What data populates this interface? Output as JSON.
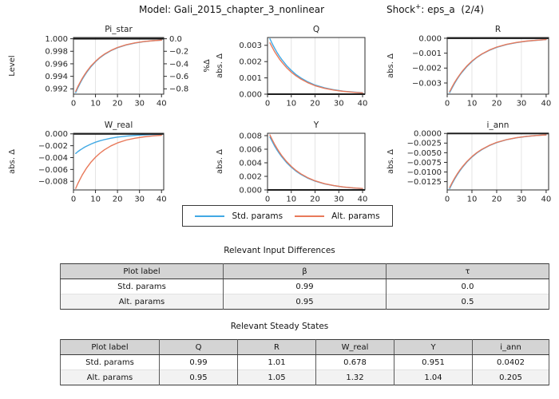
{
  "title": {
    "model_label": "Model: Gali_2015_chapter_3_nonlinear",
    "shock_base": "Shock",
    "shock_sup": "+",
    "shock_rest": ": eps_a  (2/4)"
  },
  "legend": {
    "items": [
      {
        "label": "Std. params",
        "color": "#41A9E4"
      },
      {
        "label": "Alt. params",
        "color": "#E8795A"
      }
    ]
  },
  "chart_data": {
    "type": "line",
    "x": [
      1,
      2,
      3,
      4,
      5,
      6,
      8,
      10,
      12,
      14,
      17,
      20,
      24,
      28,
      32,
      36,
      40
    ],
    "xlim": [
      0,
      41
    ],
    "xticks": [
      0,
      10,
      20,
      30,
      40
    ],
    "grid_x": [
      10,
      20,
      30
    ],
    "series_names": [
      "Std. params",
      "Alt. params"
    ],
    "colors": [
      "#41A9E4",
      "#E8795A"
    ],
    "legend_position": "below",
    "subplots": [
      {
        "title": "Pi_star",
        "ylabel": "Level",
        "ylim": [
          0.99115,
          1.0002
        ],
        "refline": 1.0,
        "ytick_vals": [
          1.0,
          0.998,
          0.996,
          0.994,
          0.992
        ],
        "ytick_labels": [
          "1.000",
          "0.998",
          "0.996",
          "0.994",
          "0.992"
        ],
        "right_axis": {
          "label": "%Δ",
          "tick_vals": [
            0.0,
            -0.2,
            -0.4,
            -0.6,
            -0.8
          ],
          "tick_labels": [
            "0.0",
            "−0.2",
            "−0.4",
            "−0.6",
            "−0.8"
          ]
        },
        "series": {
          "std": [
            0.9914,
            0.99217,
            0.99288,
            0.99352,
            0.9941,
            0.99463,
            0.99555,
            0.99632,
            0.99696,
            0.99747,
            0.9981,
            0.99857,
            0.99902,
            0.99932,
            0.99954,
            0.99968,
            0.99978
          ],
          "alt": [
            0.9916,
            0.99236,
            0.99304,
            0.99367,
            0.99424,
            0.99476,
            0.99566,
            0.9964,
            0.99703,
            0.99753,
            0.99814,
            0.99861,
            0.99904,
            0.99934,
            0.99955,
            0.99969,
            0.99978
          ]
        }
      },
      {
        "title": "Q",
        "ylabel": "abs. Δ",
        "ylim": [
          0.0,
          0.00348
        ],
        "refline": 0.0,
        "ytick_vals": [
          0.003,
          0.002,
          0.001,
          0.0
        ],
        "ytick_labels": [
          "0.003",
          "0.002",
          "0.001",
          "0.000"
        ],
        "series": {
          "std": [
            0.0034,
            0.00309,
            0.00282,
            0.00256,
            0.00233,
            0.00212,
            0.00176,
            0.00146,
            0.0012,
            0.001,
            0.00075,
            0.00056,
            0.00039,
            0.00027,
            0.00018,
            0.00013,
            9e-05
          ],
          "alt": [
            0.00315,
            0.00287,
            0.00261,
            0.00238,
            0.00216,
            0.00197,
            0.00163,
            0.00135,
            0.00112,
            0.00093,
            0.0007,
            0.00052,
            0.00036,
            0.00025,
            0.00017,
            0.00012,
            8e-05
          ]
        }
      },
      {
        "title": "R",
        "ylabel": "abs. Δ",
        "ylim": [
          -0.00375,
          5e-05
        ],
        "refline": 0.0,
        "ytick_vals": [
          0.0,
          -0.001,
          -0.002,
          -0.003
        ],
        "ytick_labels": [
          "0.000",
          "−0.001",
          "−0.002",
          "−0.003"
        ],
        "series": {
          "std": [
            -0.00365,
            -0.00332,
            -0.00302,
            -0.00275,
            -0.0025,
            -0.00228,
            -0.00189,
            -0.00156,
            -0.00129,
            -0.00107,
            -0.00081,
            -0.00061,
            -0.00042,
            -0.00029,
            -0.0002,
            -0.00014,
            -9e-05
          ],
          "alt": [
            -0.00358,
            -0.00326,
            -0.00296,
            -0.0027,
            -0.00246,
            -0.00223,
            -0.00185,
            -0.00153,
            -0.00127,
            -0.00105,
            -0.00079,
            -0.00059,
            -0.00041,
            -0.00028,
            -0.00019,
            -0.00013,
            -9e-05
          ]
        }
      },
      {
        "title": "W_real",
        "ylabel": "abs. Δ",
        "ylim": [
          -0.00945,
          0.0001
        ],
        "refline": 0.0,
        "ytick_vals": [
          0.0,
          -0.002,
          -0.004,
          -0.006,
          -0.008
        ],
        "ytick_labels": [
          "0.000",
          "−0.002",
          "−0.004",
          "−0.006",
          "−0.008"
        ],
        "series": {
          "std": [
            -0.0033,
            -0.003,
            -0.00273,
            -0.00249,
            -0.00226,
            -0.00206,
            -0.00171,
            -0.00141,
            -0.00117,
            -0.00097,
            -0.00073,
            -0.00055,
            -0.00038,
            -0.00026,
            -0.00018,
            -0.00012,
            -9e-05
          ],
          "alt": [
            -0.0092,
            -0.00837,
            -0.00762,
            -0.00694,
            -0.00631,
            -0.00574,
            -0.00476,
            -0.00394,
            -0.00326,
            -0.0027,
            -0.00203,
            -0.00153,
            -0.00105,
            -0.00073,
            -0.0005,
            -0.00034,
            -0.00024
          ]
        }
      },
      {
        "title": "Y",
        "ylabel": "abs. Δ",
        "ylim": [
          0.0,
          0.00835
        ],
        "refline": 0.0,
        "ytick_vals": [
          0.008,
          0.006,
          0.004,
          0.002,
          0.0
        ],
        "ytick_labels": [
          "0.008",
          "0.006",
          "0.004",
          "0.002",
          "0.000"
        ],
        "series": {
          "std": [
            0.0078,
            0.0071,
            0.00646,
            0.00588,
            0.00535,
            0.00487,
            0.00403,
            0.00334,
            0.00276,
            0.00229,
            0.00172,
            0.00129,
            0.00089,
            0.00062,
            0.00042,
            0.00029,
            0.0002
          ],
          "alt": [
            0.0081,
            0.00737,
            0.00671,
            0.00611,
            0.00556,
            0.00505,
            0.00419,
            0.00347,
            0.00287,
            0.00238,
            0.00179,
            0.00134,
            0.00092,
            0.00064,
            0.00044,
            0.0003,
            0.00021
          ]
        }
      },
      {
        "title": "i_ann",
        "ylabel": "abs. Δ",
        "ylim": [
          -0.01465,
          5e-05
        ],
        "refline": 0.0,
        "ytick_vals": [
          0.0,
          -0.0025,
          -0.005,
          -0.0075,
          -0.01,
          -0.0125
        ],
        "ytick_labels": [
          "0.0000",
          "−0.0025",
          "−0.0050",
          "−0.0075",
          "−0.0100",
          "−0.0125"
        ],
        "series": {
          "std": [
            -0.0143,
            -0.01301,
            -0.01184,
            -0.01078,
            -0.00981,
            -0.00892,
            -0.00739,
            -0.00612,
            -0.00506,
            -0.0042,
            -0.00316,
            -0.00237,
            -0.00163,
            -0.00113,
            -0.00077,
            -0.00053,
            -0.00037
          ],
          "alt": [
            -0.014,
            -0.01274,
            -0.01159,
            -0.01055,
            -0.0096,
            -0.00874,
            -0.00724,
            -0.00599,
            -0.00496,
            -0.00412,
            -0.00309,
            -0.00232,
            -0.0016,
            -0.00111,
            -0.00076,
            -0.00052,
            -0.00036
          ]
        }
      }
    ]
  },
  "tables": [
    {
      "title": "Relevant Input Differences",
      "columns": [
        "Plot label",
        "β",
        "τ"
      ],
      "rows": [
        [
          "Std. params",
          "0.99",
          "0.0"
        ],
        [
          "Alt. params",
          "0.95",
          "0.5"
        ]
      ]
    },
    {
      "title": "Relevant Steady States",
      "columns": [
        "Plot label",
        "Q",
        "R",
        "W_real",
        "Y",
        "i_ann"
      ],
      "rows": [
        [
          "Std. params",
          "0.99",
          "1.01",
          "0.678",
          "0.951",
          "0.0402"
        ],
        [
          "Alt. params",
          "0.95",
          "1.05",
          "1.32",
          "1.04",
          "0.205"
        ]
      ]
    }
  ],
  "colors": {
    "std_params": "#41A9E4",
    "alt_params": "#E8795A",
    "reference_line": "#111111",
    "axis": "#2b2b2b",
    "grid": "#e1e1e1",
    "table_header_bg": "#d4d4d4",
    "table_alt_row_bg": "#f2f2f2"
  }
}
